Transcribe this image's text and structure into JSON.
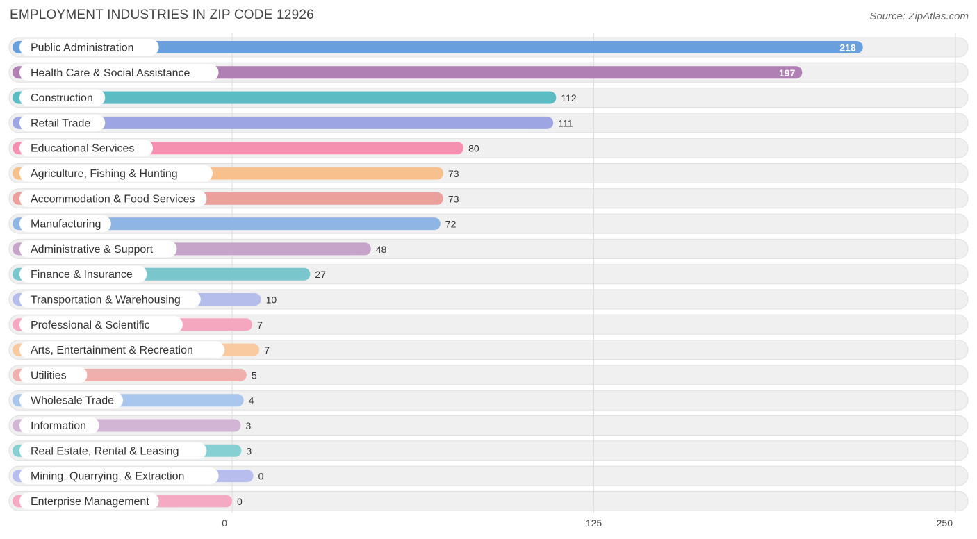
{
  "chart_data": {
    "type": "bar",
    "orientation": "horizontal",
    "title": "EMPLOYMENT INDUSTRIES IN ZIP CODE 12926",
    "source": "Source: ZipAtlas.com",
    "xlim": [
      0,
      250
    ],
    "ticks": [
      0,
      125,
      250
    ],
    "categories": [
      "Public Administration",
      "Health Care & Social Assistance",
      "Construction",
      "Retail Trade",
      "Educational Services",
      "Agriculture, Fishing & Hunting",
      "Accommodation & Food Services",
      "Manufacturing",
      "Administrative & Support",
      "Finance & Insurance",
      "Transportation & Warehousing",
      "Professional & Scientific",
      "Arts, Entertainment & Recreation",
      "Utilities",
      "Wholesale Trade",
      "Information",
      "Real Estate, Rental & Leasing",
      "Mining, Quarrying, & Extraction",
      "Enterprise Management"
    ],
    "values": [
      218,
      197,
      112,
      111,
      80,
      73,
      73,
      72,
      48,
      27,
      10,
      7,
      7,
      5,
      4,
      3,
      3,
      0,
      0
    ],
    "colors": [
      "#6a9fdd",
      "#b07fb4",
      "#5bbcc4",
      "#9da6e2",
      "#f590b0",
      "#f8c08c",
      "#eba09c",
      "#8fb5e4",
      "#c6a3c9",
      "#79c7cc",
      "#b5bdeb",
      "#f6a7c0",
      "#f9c9a0",
      "#f0aeac",
      "#a9c6ec",
      "#d2b4d4",
      "#86d0d4",
      "#b7bdec",
      "#f6a9c3"
    ]
  }
}
